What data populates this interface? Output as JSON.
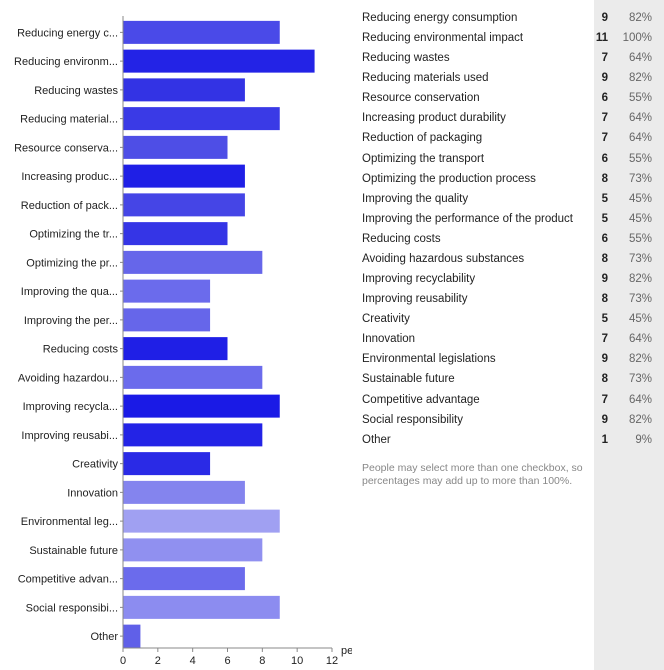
{
  "chart_data": {
    "type": "bar",
    "orientation": "horizontal",
    "categories": [
      "Reducing energy c...",
      "Reducing environm...",
      "Reducing wastes",
      "Reducing material...",
      "Resource conserva...",
      "Increasing produc...",
      "Reduction of pack...",
      "Optimizing the tr...",
      "Optimizing the pr...",
      "Improving the qua...",
      "Improving the per...",
      "Reducing costs",
      "Avoiding hazardou...",
      "Improving recycla...",
      "Improving reusabi...",
      "Creativity",
      "Innovation",
      "Environmental leg...",
      "Sustainable future",
      "Competitive advan...",
      "Social responsibi...",
      "Other"
    ],
    "values": [
      9,
      11,
      7,
      9,
      6,
      7,
      7,
      6,
      8,
      5,
      5,
      6,
      8,
      9,
      8,
      5,
      7,
      9,
      8,
      7,
      9,
      1
    ],
    "bar_colors": [
      "#4a4ae8",
      "#2323e6",
      "#3333e4",
      "#3a3ae6",
      "#4e4ee6",
      "#1f1fe6",
      "#4545e6",
      "#3535e6",
      "#6666ea",
      "#6b6bec",
      "#6666ea",
      "#1f1fe6",
      "#6b6bec",
      "#1a1ae6",
      "#2323e6",
      "#2a2ae6",
      "#8484ee",
      "#a0a0f2",
      "#9090f0",
      "#6b6bec",
      "#8c8cf0",
      "#6060e8"
    ],
    "xlabel": "people",
    "xlim": [
      0,
      12
    ],
    "xticks": [
      0,
      2,
      4,
      6,
      8,
      10,
      12
    ],
    "grid": false
  },
  "stats": [
    {
      "label": "Reducing energy consumption",
      "count": "9",
      "percent": "82%"
    },
    {
      "label": "Reducing environmental impact",
      "count": "11",
      "percent": "100%"
    },
    {
      "label": "Reducing wastes",
      "count": "7",
      "percent": "64%"
    },
    {
      "label": "Reducing materials used",
      "count": "9",
      "percent": "82%"
    },
    {
      "label": "Resource conservation",
      "count": "6",
      "percent": "55%"
    },
    {
      "label": "Increasing product durability",
      "count": "7",
      "percent": "64%"
    },
    {
      "label": "Reduction of packaging",
      "count": "7",
      "percent": "64%"
    },
    {
      "label": "Optimizing the transport",
      "count": "6",
      "percent": "55%"
    },
    {
      "label": "Optimizing the production process",
      "count": "8",
      "percent": "73%"
    },
    {
      "label": "Improving the quality",
      "count": "5",
      "percent": "45%"
    },
    {
      "label": "Improving the performance of the product",
      "count": "5",
      "percent": "45%"
    },
    {
      "label": "Reducing costs",
      "count": "6",
      "percent": "55%"
    },
    {
      "label": "Avoiding hazardous substances",
      "count": "8",
      "percent": "73%"
    },
    {
      "label": "Improving recyclability",
      "count": "9",
      "percent": "82%"
    },
    {
      "label": "Improving reusability",
      "count": "8",
      "percent": "73%"
    },
    {
      "label": "Creativity",
      "count": "5",
      "percent": "45%"
    },
    {
      "label": "Innovation",
      "count": "7",
      "percent": "64%"
    },
    {
      "label": "Environmental legislations",
      "count": "9",
      "percent": "82%"
    },
    {
      "label": "Sustainable future",
      "count": "8",
      "percent": "73%"
    },
    {
      "label": "Competitive advantage",
      "count": "7",
      "percent": "64%"
    },
    {
      "label": "Social responsibility",
      "count": "9",
      "percent": "82%"
    },
    {
      "label": "Other",
      "count": "1",
      "percent": "9%"
    }
  ],
  "footnote": "People may select more than one checkbox, so percentages may add up to more than 100%."
}
